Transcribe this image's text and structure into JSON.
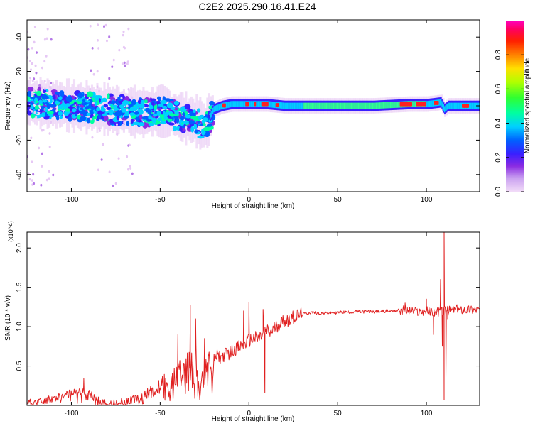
{
  "title": "C2E2.2025.290.16.41.E24",
  "chart_data": [
    {
      "type": "heatmap",
      "title": "C2E2.2025.290.16.41.E24",
      "xlabel": "Height of straight line (km)",
      "ylabel": "Frequency (Hz)",
      "xlim": [
        -125,
        130
      ],
      "ylim": [
        -50,
        50
      ],
      "x_ticks": [
        -100,
        -50,
        0,
        50,
        100
      ],
      "x_tick_labels": [
        "-100",
        "-50",
        "0",
        "50",
        "100"
      ],
      "y_ticks": [
        -40,
        -20,
        0,
        20,
        40
      ],
      "y_tick_labels": [
        "-40",
        "-20",
        "0",
        "20",
        "40"
      ],
      "grid": false,
      "colorbar": {
        "label": "Normalized spectral amplitude",
        "range": [
          0,
          1
        ],
        "ticks": [
          0.0,
          0.2,
          0.4,
          0.6,
          0.8
        ],
        "tick_labels": [
          "0.0",
          "0.2",
          "0.4",
          "0.6",
          "0.8"
        ],
        "colors": [
          "#f2dcf8",
          "#c9a0f0",
          "#8a2be2",
          "#3a1fff",
          "#0060ff",
          "#00d0ff",
          "#00ffa0",
          "#30ff30",
          "#b0ff00",
          "#ffe000",
          "#ff8000",
          "#ff2000",
          "#ff0060",
          "#ff00c0"
        ]
      },
      "ridge": {
        "x": [
          -125,
          -110,
          -100,
          -90,
          -80,
          -70,
          -60,
          -50,
          -40,
          -30,
          -25,
          -20,
          -15,
          -10,
          0,
          10,
          20,
          30,
          50,
          70,
          90,
          100,
          108,
          110,
          112,
          120,
          130
        ],
        "freq": [
          2,
          1,
          0,
          -1,
          -2,
          -3,
          -4,
          -3,
          -6,
          -9,
          -12,
          -2,
          0,
          1,
          1,
          1,
          0,
          0,
          0,
          0,
          1,
          1,
          2,
          -2,
          0,
          0,
          0
        ]
      }
    },
    {
      "type": "line",
      "xlabel": "Height of straight line (km)",
      "ylabel": "SNR (10 * v/v)",
      "y_multiplier": "(x10^4)",
      "xlim": [
        -125,
        130
      ],
      "ylim": [
        0,
        2.2
      ],
      "x_ticks": [
        -100,
        -50,
        0,
        50,
        100
      ],
      "x_tick_labels": [
        "-100",
        "-50",
        "0",
        "50",
        "100"
      ],
      "y_ticks": [
        0.5,
        1.0,
        1.5,
        2.0
      ],
      "y_tick_labels": [
        "0.5",
        "1.0",
        "1.5",
        "2.0"
      ],
      "grid": false,
      "series": [
        {
          "color": "#e02020",
          "x": [
            -125,
            -115,
            -105,
            -100,
            -95,
            -90,
            -85,
            -80,
            -75,
            -70,
            -65,
            -60,
            -55,
            -50,
            -45,
            -40,
            -35,
            -32,
            -30,
            -28,
            -25,
            -22,
            -20,
            -18,
            -15,
            -12,
            -10,
            -8,
            -5,
            -3,
            0,
            3,
            5,
            8,
            10,
            12,
            15,
            18,
            20,
            25,
            30,
            35,
            40,
            50,
            60,
            70,
            80,
            88,
            90,
            95,
            100,
            105,
            108,
            110,
            111,
            112,
            115,
            120,
            125,
            130
          ],
          "y": [
            0.03,
            0.06,
            0.12,
            0.17,
            0.2,
            0.15,
            0.06,
            0.02,
            0.03,
            0.05,
            0.08,
            0.12,
            0.18,
            0.22,
            0.28,
            0.35,
            0.45,
            0.55,
            0.5,
            0.48,
            0.45,
            0.5,
            0.58,
            0.62,
            0.62,
            0.66,
            0.68,
            0.72,
            0.74,
            0.78,
            0.82,
            0.86,
            0.84,
            0.9,
            0.95,
            0.92,
            1.0,
            1.05,
            1.08,
            1.12,
            1.16,
            1.18,
            1.17,
            1.18,
            1.19,
            1.19,
            1.2,
            1.21,
            1.2,
            1.19,
            1.2,
            1.18,
            1.2,
            1.2,
            1.21,
            1.2,
            1.22,
            1.22,
            1.22,
            1.22
          ]
        }
      ],
      "spikes": [
        {
          "x": -93,
          "y": 0.34
        },
        {
          "x": -40,
          "y": 0.9
        },
        {
          "x": -33,
          "y": 1.27
        },
        {
          "x": -30,
          "y": 1.1
        },
        {
          "x": -25,
          "y": 0.85
        },
        {
          "x": -3,
          "y": 1.2
        },
        {
          "x": 0,
          "y": 1.31
        },
        {
          "x": 8,
          "y": 1.22
        },
        {
          "x": 9,
          "y": 0.16
        },
        {
          "x": 22,
          "y": 1.0
        },
        {
          "x": 88,
          "y": 1.3
        },
        {
          "x": 100,
          "y": 1.35
        },
        {
          "x": 104,
          "y": 0.9
        },
        {
          "x": 108,
          "y": 1.6
        },
        {
          "x": 109,
          "y": 0.75
        },
        {
          "x": 110,
          "y": 2.2
        },
        {
          "x": 110,
          "y": 0.07
        },
        {
          "x": 111,
          "y": 0.35
        },
        {
          "x": 112,
          "y": 1.1
        }
      ]
    }
  ]
}
